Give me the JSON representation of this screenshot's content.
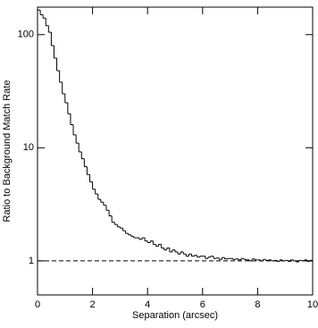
{
  "chart_data": {
    "type": "histogram",
    "xlabel": "Separation (arcsec)",
    "ylabel": "Ratio to Background Match Rate",
    "color": "#000000",
    "log_y": true,
    "hline": 1,
    "xlim": [
      0,
      10
    ],
    "xticks": [
      0,
      2,
      4,
      6,
      8,
      10
    ],
    "ylim": [
      0.5,
      175
    ],
    "yticks": [
      1,
      10,
      100
    ],
    "bins": [
      0,
      0.1,
      0.2,
      0.3,
      0.4,
      0.5,
      0.6,
      0.7,
      0.8,
      0.9,
      1,
      1.1,
      1.2,
      1.3,
      1.4,
      1.5,
      1.6,
      1.7,
      1.8,
      1.9,
      2,
      2.1,
      2.2,
      2.3,
      2.4,
      2.5,
      2.6,
      2.7,
      2.8,
      2.9,
      3,
      3.1,
      3.2,
      3.3,
      3.4,
      3.5,
      3.6,
      3.7,
      3.8,
      3.9,
      4,
      4.1,
      4.2,
      4.3,
      4.4,
      4.5,
      4.6,
      4.7,
      4.8,
      4.9,
      5,
      5.1,
      5.2,
      5.3,
      5.4,
      5.5,
      5.6,
      5.7,
      5.8,
      5.9,
      6,
      6.1,
      6.2,
      6.3,
      6.4,
      6.5,
      6.6,
      6.7,
      6.8,
      6.9,
      7,
      7.1,
      7.2,
      7.3,
      7.4,
      7.5,
      7.6,
      7.7,
      7.8,
      7.9,
      8,
      8.1,
      8.2,
      8.3,
      8.4,
      8.5,
      8.6,
      8.7,
      8.8,
      8.9,
      9,
      9.1,
      9.2,
      9.3,
      9.4,
      9.5,
      9.6,
      9.7,
      9.8,
      9.9,
      10
    ],
    "values": [
      165,
      150,
      140,
      120,
      105,
      80,
      62,
      48,
      38,
      30,
      25,
      20,
      16,
      13,
      11,
      9.2,
      8.0,
      6.8,
      5.8,
      5.0,
      4.3,
      3.9,
      3.5,
      3.3,
      3.1,
      2.8,
      2.5,
      2.2,
      2.1,
      2.0,
      1.95,
      1.85,
      1.75,
      1.7,
      1.65,
      1.6,
      1.6,
      1.55,
      1.6,
      1.5,
      1.45,
      1.5,
      1.4,
      1.35,
      1.4,
      1.3,
      1.25,
      1.3,
      1.2,
      1.25,
      1.2,
      1.15,
      1.2,
      1.15,
      1.1,
      1.15,
      1.1,
      1.12,
      1.08,
      1.1,
      1.1,
      1.05,
      1.08,
      1.1,
      1.05,
      1.06,
      1.03,
      1.07,
      1.04,
      1.05,
      1.05,
      1.03,
      1.04,
      1.02,
      1.05,
      1.03,
      1.02,
      1.0,
      1.04,
      1.02,
      1.02,
      1.0,
      1.03,
      1.01,
      1.02,
      1.0,
      1.01,
      0.99,
      1.02,
      1.0,
      1.01,
      0.99,
      1.02,
      1.0,
      0.98,
      1.01,
      1.0,
      1.02,
      0.99,
      1.01
    ]
  }
}
